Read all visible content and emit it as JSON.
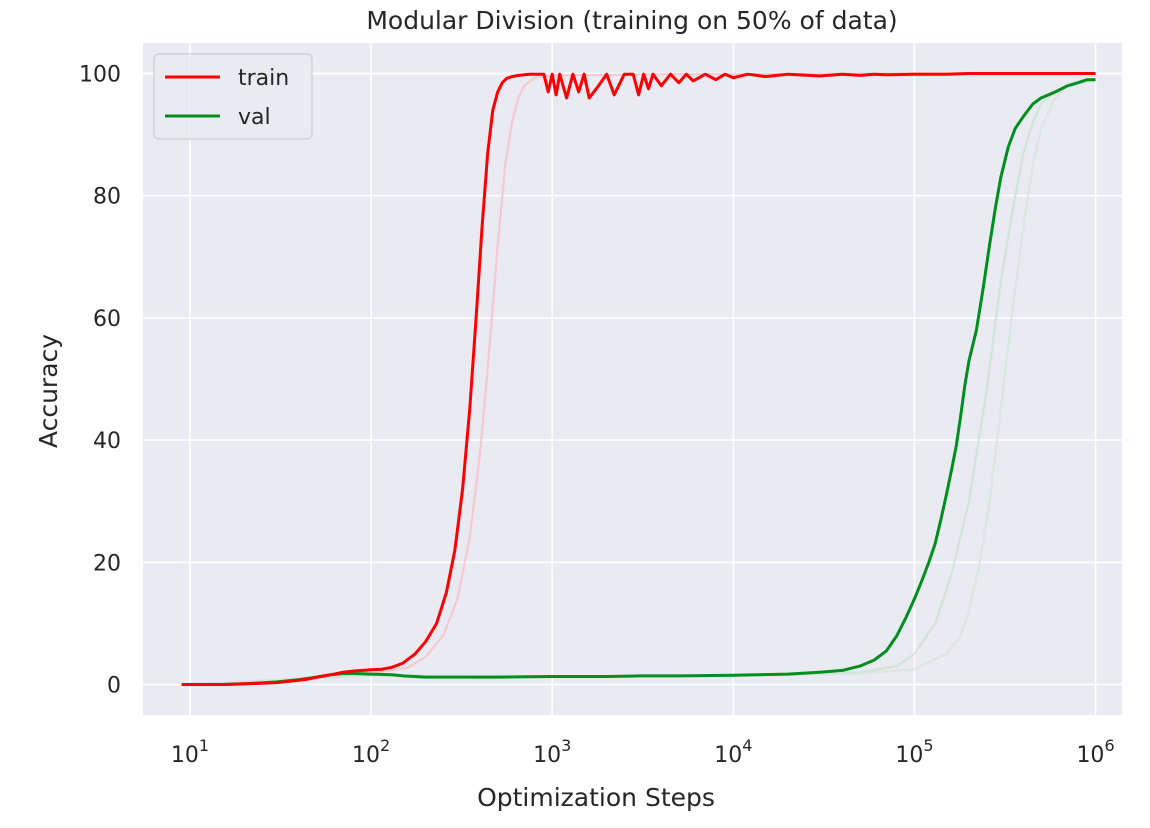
{
  "chart_data": {
    "type": "line",
    "title": "Modular Division (training on 50% of data)",
    "xlabel": "Optimization Steps",
    "ylabel": "Accuracy",
    "xscale": "log",
    "xlim": [
      5.5,
      1400000
    ],
    "ylim": [
      -5,
      105
    ],
    "xticks": [
      {
        "value": 10,
        "base": "10",
        "exp": "1"
      },
      {
        "value": 100,
        "base": "10",
        "exp": "2"
      },
      {
        "value": 1000,
        "base": "10",
        "exp": "3"
      },
      {
        "value": 10000,
        "base": "10",
        "exp": "4"
      },
      {
        "value": 100000,
        "base": "10",
        "exp": "5"
      },
      {
        "value": 1000000,
        "base": "10",
        "exp": "6"
      }
    ],
    "yticks": [
      0,
      20,
      40,
      60,
      80,
      100
    ],
    "grid": true,
    "legend_position": "top-left",
    "colors": {
      "background": "#EAEAF2",
      "grid": "#FFFFFF",
      "train": "#FF0000",
      "val": "#008F1F"
    },
    "series": [
      {
        "name": "train",
        "color": "#FF0000",
        "x": [
          9,
          12,
          16,
          20,
          25,
          30,
          35,
          40,
          45,
          50,
          55,
          60,
          65,
          70,
          80,
          90,
          100,
          115,
          130,
          150,
          175,
          200,
          230,
          260,
          290,
          320,
          350,
          380,
          410,
          440,
          470,
          500,
          530,
          560,
          600,
          650,
          700,
          750,
          800,
          850,
          900,
          950,
          1000,
          1050,
          1100,
          1200,
          1300,
          1400,
          1500,
          1600,
          1800,
          2000,
          2200,
          2500,
          2800,
          3000,
          3200,
          3400,
          3600,
          4000,
          4500,
          5000,
          5500,
          6000,
          7000,
          8000,
          9000,
          10000,
          12000,
          15000,
          20000,
          30000,
          40000,
          50000,
          60000,
          70000,
          100000,
          150000,
          200000,
          300000,
          500000,
          700000,
          1000000
        ],
        "y": [
          0,
          0,
          0,
          0.1,
          0.2,
          0.3,
          0.5,
          0.7,
          0.9,
          1.2,
          1.4,
          1.6,
          1.8,
          2.0,
          2.2,
          2.3,
          2.4,
          2.5,
          2.8,
          3.5,
          5,
          7,
          10,
          15,
          22,
          32,
          45,
          60,
          75,
          87,
          94,
          97,
          98.5,
          99.2,
          99.5,
          99.7,
          99.8,
          99.9,
          99.9,
          99.9,
          99.9,
          97,
          99.9,
          96.5,
          99.9,
          96,
          99.9,
          97,
          99.9,
          96,
          98,
          99.9,
          96.5,
          99.9,
          99.9,
          96.5,
          99.9,
          97.5,
          99.9,
          98,
          99.9,
          98.5,
          99.9,
          98.8,
          99.9,
          99,
          99.9,
          99.3,
          99.9,
          99.5,
          99.9,
          99.6,
          99.9,
          99.7,
          99.9,
          99.8,
          99.9,
          99.9,
          100,
          100,
          100,
          100,
          100
        ]
      },
      {
        "name": "val",
        "color": "#008F1F",
        "x": [
          9,
          15,
          20,
          30,
          40,
          50,
          60,
          70,
          80,
          100,
          130,
          150,
          200,
          300,
          500,
          1000,
          2000,
          3000,
          5000,
          10000,
          20000,
          30000,
          40000,
          50000,
          60000,
          70000,
          80000,
          90000,
          100000,
          110000,
          120000,
          130000,
          140000,
          150000,
          160000,
          170000,
          180000,
          190000,
          200000,
          220000,
          240000,
          260000,
          280000,
          300000,
          330000,
          360000,
          400000,
          450000,
          500000,
          600000,
          700000,
          800000,
          900000,
          1000000
        ],
        "y": [
          0,
          0,
          0.1,
          0.4,
          0.8,
          1.2,
          1.6,
          1.8,
          1.8,
          1.7,
          1.6,
          1.4,
          1.2,
          1.2,
          1.2,
          1.3,
          1.3,
          1.4,
          1.4,
          1.5,
          1.7,
          2.0,
          2.3,
          3.0,
          4.0,
          5.5,
          8,
          11,
          14,
          17,
          20,
          23,
          27,
          31,
          35,
          39,
          44,
          49,
          53,
          58,
          65,
          72,
          78,
          83,
          88,
          91,
          93,
          95,
          96,
          97,
          98,
          98.5,
          99,
          99
        ]
      }
    ],
    "ghost_series": [
      {
        "color": "#F9C0C8",
        "x": [
          9,
          20,
          40,
          60,
          80,
          100,
          130,
          160,
          200,
          250,
          300,
          350,
          400,
          450,
          500,
          550,
          600,
          650,
          700,
          800,
          1000,
          2000,
          5000,
          10000,
          100000,
          1000000
        ],
        "y": [
          0,
          0.1,
          0.6,
          1.3,
          1.8,
          2.0,
          2.3,
          2.8,
          4.5,
          8,
          14,
          24,
          38,
          55,
          72,
          85,
          92,
          96,
          98,
          99.3,
          99.7,
          99.8,
          99.9,
          99.9,
          100,
          100
        ]
      },
      {
        "color": "#C9E3D0",
        "x": [
          9,
          100,
          1000,
          10000,
          50000,
          80000,
          100000,
          130000,
          160000,
          200000,
          250000,
          300000,
          350000,
          400000,
          450000,
          500000,
          600000,
          700000,
          1000000
        ],
        "y": [
          0,
          1.5,
          1.3,
          1.4,
          2,
          3,
          5,
          10,
          18,
          30,
          48,
          66,
          78,
          87,
          92,
          95,
          97,
          98,
          99
        ]
      },
      {
        "color": "#D3E6DA",
        "x": [
          9,
          100,
          1000,
          10000,
          50000,
          100000,
          150000,
          180000,
          200000,
          230000,
          260000,
          300000,
          350000,
          400000,
          450000,
          500000,
          600000,
          700000,
          1000000
        ],
        "y": [
          0,
          1.5,
          1.3,
          1.4,
          1.8,
          2.5,
          5,
          8,
          12,
          20,
          30,
          45,
          62,
          75,
          85,
          91,
          96,
          98,
          99
        ]
      }
    ]
  }
}
